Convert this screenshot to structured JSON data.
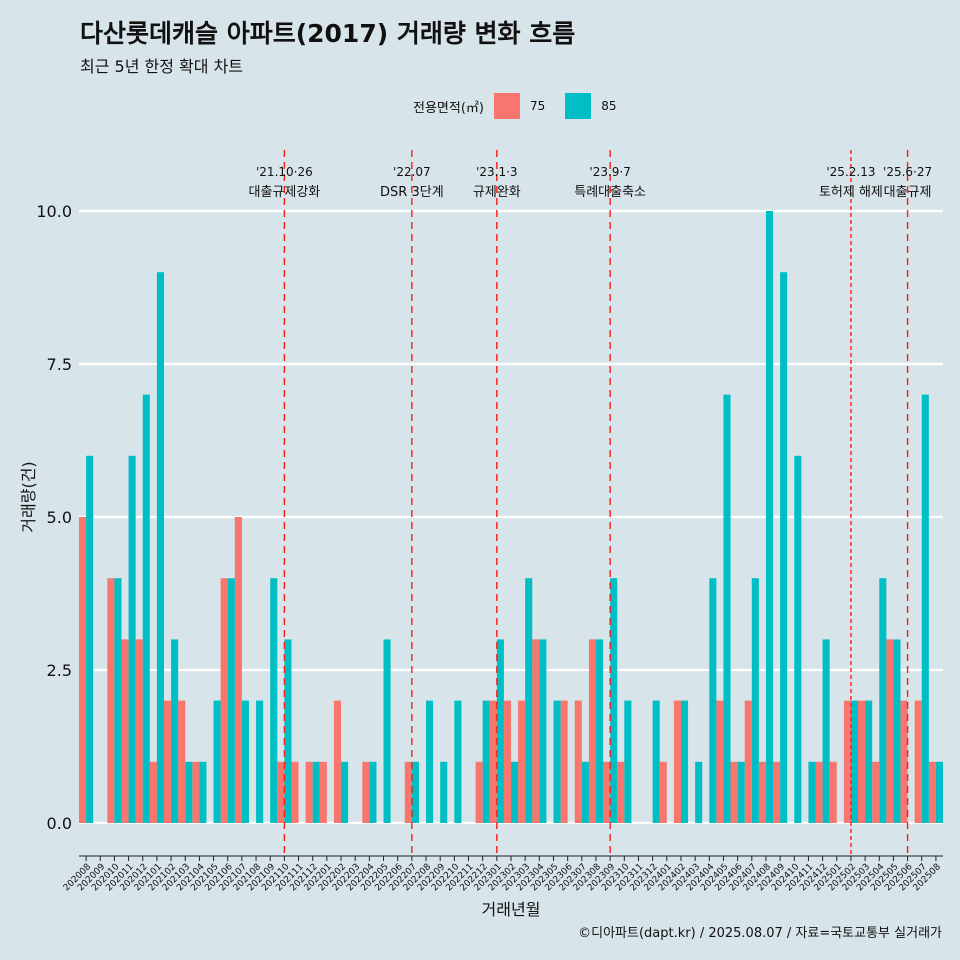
{
  "title": "다산롯데캐슬 아파트(2017) 거래량 변화 흐름",
  "subtitle": "최근 5년 한정 확대 차트",
  "caption": "©디아파트(dapt.kr) / 2025.08.07 / 자료=국토교통부 실거래가",
  "legend": {
    "title": "전용면적(㎡)",
    "items": [
      {
        "label": "75",
        "color": "#f8766d"
      },
      {
        "label": "85",
        "color": "#00bfc4"
      }
    ]
  },
  "chart_data": {
    "type": "bar",
    "title": "다산롯데캐슬 아파트(2017) 거래량 변화 흐름",
    "xlabel": "거래년월",
    "ylabel": "거래량(건)",
    "ylim": [
      0,
      10
    ],
    "yticks": [
      "0.0",
      "2.5",
      "5.0",
      "7.5",
      "10.0"
    ],
    "grid": true,
    "legend_position": "top",
    "categories": [
      "202008",
      "202009",
      "202010",
      "202011",
      "202012",
      "202101",
      "202102",
      "202103",
      "202104",
      "202105",
      "202106",
      "202107",
      "202108",
      "202109",
      "202110",
      "202111",
      "202112",
      "202201",
      "202202",
      "202203",
      "202204",
      "202205",
      "202206",
      "202207",
      "202208",
      "202209",
      "202210",
      "202211",
      "202212",
      "202301",
      "202302",
      "202303",
      "202304",
      "202305",
      "202306",
      "202307",
      "202308",
      "202309",
      "202310",
      "202311",
      "202312",
      "202401",
      "202402",
      "202403",
      "202404",
      "202405",
      "202406",
      "202407",
      "202408",
      "202409",
      "202410",
      "202411",
      "202412",
      "202501",
      "202502",
      "202503",
      "202504",
      "202505",
      "202506",
      "202507",
      "202508"
    ],
    "series": [
      {
        "name": "75",
        "color": "#f8766d",
        "values": [
          5,
          0,
          4,
          3,
          3,
          1,
          2,
          2,
          1,
          0,
          4,
          5,
          0,
          0,
          1,
          1,
          1,
          1,
          2,
          0,
          1,
          0,
          0,
          1,
          0,
          0,
          0,
          0,
          1,
          2,
          2,
          2,
          3,
          0,
          2,
          2,
          3,
          1,
          1,
          0,
          0,
          1,
          2,
          0,
          0,
          2,
          1,
          2,
          1,
          1,
          0,
          0,
          1,
          1,
          2,
          2,
          1,
          3,
          2,
          2,
          1
        ]
      },
      {
        "name": "85",
        "color": "#00bfc4",
        "values": [
          6,
          0,
          4,
          6,
          7,
          9,
          3,
          1,
          1,
          2,
          4,
          2,
          2,
          4,
          3,
          0,
          1,
          0,
          1,
          0,
          1,
          3,
          0,
          1,
          2,
          1,
          2,
          0,
          2,
          3,
          1,
          4,
          3,
          2,
          0,
          1,
          3,
          4,
          2,
          0,
          2,
          0,
          2,
          1,
          4,
          7,
          1,
          4,
          10,
          9,
          6,
          1,
          3,
          0,
          2,
          2,
          4,
          3,
          0,
          7,
          1
        ]
      }
    ],
    "annotations": [
      {
        "date_label": "'21.10·26",
        "event": "대출규제강화",
        "category": "202110",
        "dash": "long"
      },
      {
        "date_label": "'22.07",
        "event": "DSR 3단계",
        "category": "202207",
        "dash": "long"
      },
      {
        "date_label": "'23.1·3",
        "event": "규제완화",
        "category": "202301",
        "dash": "long"
      },
      {
        "date_label": "'23.9·7",
        "event": "특례대출축소",
        "category": "202309",
        "dash": "long"
      },
      {
        "date_label": "'25.2.13",
        "event": "토허제 해제",
        "category": "202502",
        "dash": "short"
      },
      {
        "date_label": "'25.6·27",
        "event": "대출규제",
        "category": "202506",
        "dash": "long"
      }
    ]
  }
}
